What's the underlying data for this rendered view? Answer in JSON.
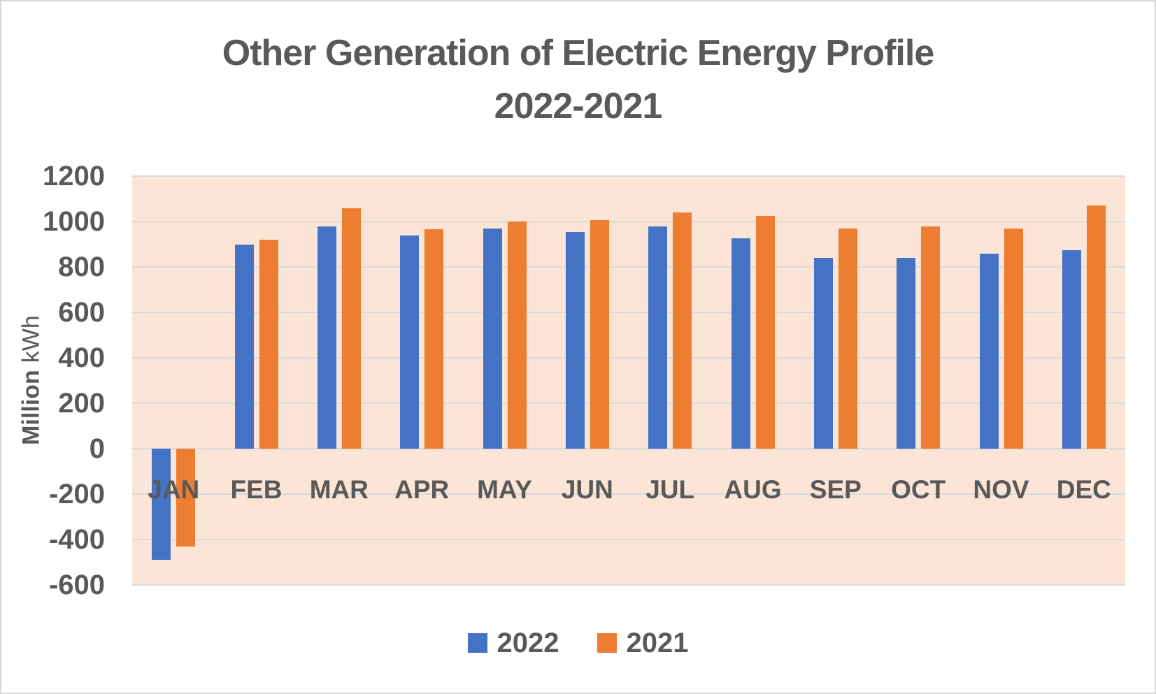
{
  "page": {
    "background": "#ffffff",
    "border_color": "#d7d7d7"
  },
  "chart_data": {
    "type": "bar",
    "title": "Other Generation of Electric Energy Profile",
    "subtitle": "2022-2021",
    "ylabel": "Million kWh",
    "ylabel_bold_part": "Million",
    "ylabel_regular_part": "kWh",
    "xlabel": "",
    "categories": [
      "JAN",
      "FEB",
      "MAR",
      "APR",
      "MAY",
      "JUN",
      "JUL",
      "AUG",
      "SEP",
      "OCT",
      "NOV",
      "DEC"
    ],
    "series": [
      {
        "name": "2022",
        "color": "#4472C4",
        "values": [
          -490,
          900,
          980,
          940,
          970,
          955,
          980,
          925,
          840,
          840,
          860,
          875
        ]
      },
      {
        "name": "2021",
        "color": "#ED7D31",
        "values": [
          -430,
          920,
          1060,
          965,
          1000,
          1005,
          1040,
          1025,
          970,
          980,
          970,
          1070
        ]
      }
    ],
    "ylim": [
      -600,
      1200
    ],
    "y_ticks": [
      1200,
      1000,
      800,
      600,
      400,
      200,
      0,
      -200,
      -400,
      -600
    ],
    "grid": true,
    "legend_position": "bottom",
    "legend_entries": [
      "2022",
      "2021"
    ],
    "plot_bg": "#FBE5D6",
    "gridline_color": "#D9D9D9",
    "text_color": "#595959"
  }
}
